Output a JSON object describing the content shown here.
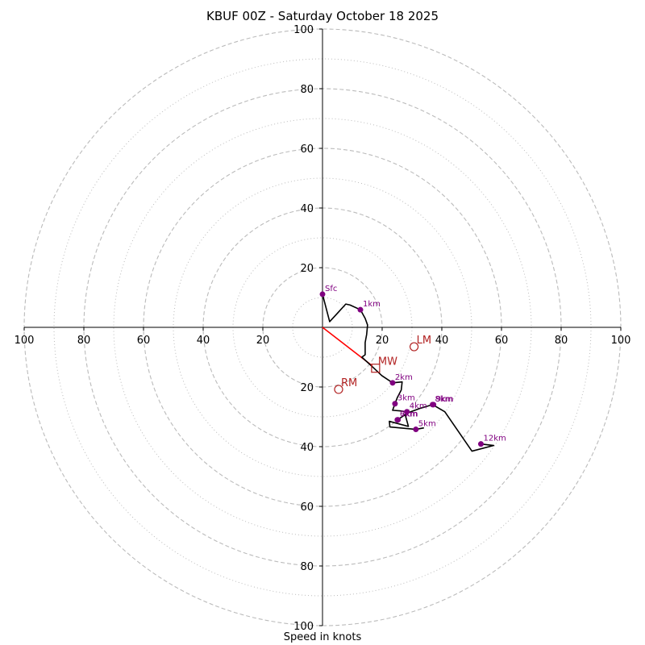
{
  "chart_data": {
    "type": "scatter",
    "subtype": "hodograph",
    "title": "KBUF 00Z - Saturday October 18 2025",
    "xlabel": "Speed in knots",
    "ylabel": "",
    "xlim": [
      -100,
      100
    ],
    "ylim": [
      -100,
      100
    ],
    "rings": {
      "dashed": [
        20,
        40,
        60,
        80,
        100
      ],
      "dotted": [
        10,
        30,
        50,
        70,
        90
      ],
      "color": "#bbbbbb"
    },
    "tick_labels": [
      "100",
      "80",
      "60",
      "40",
      "20"
    ],
    "x_ticks": [
      -100,
      -80,
      -60,
      -40,
      -20,
      20,
      40,
      60,
      80,
      100
    ],
    "y_ticks": [
      100,
      80,
      60,
      40,
      20,
      -20,
      -40,
      -60,
      -80,
      -100
    ],
    "series": [
      {
        "name": "hodograph",
        "color": "#000000",
        "segments": [
          [
            [
              0,
              11.1
            ],
            [
              2.4,
              1.9
            ],
            [
              4.9,
              4.6
            ],
            [
              7.8,
              7.8
            ],
            [
              9.2,
              7.5
            ],
            [
              12.7,
              5.9
            ],
            [
              14.3,
              3.0
            ],
            [
              15.1,
              0.8
            ],
            [
              14.8,
              -2.4
            ],
            [
              14.3,
              -5.1
            ],
            [
              14.3,
              -9.2
            ],
            [
              13.2,
              -10.0
            ],
            [
              16.7,
              -13.2
            ],
            [
              19.9,
              -16.2
            ],
            [
              23.5,
              -18.6
            ],
            [
              26.7,
              -18.3
            ],
            [
              26.4,
              -21.0
            ],
            [
              25.1,
              -23.5
            ],
            [
              24.3,
              -25.6
            ],
            [
              23.5,
              -27.8
            ],
            [
              25.9,
              -28.0
            ],
            [
              28.3,
              -28.3
            ],
            [
              27.8,
              -29.6
            ],
            [
              28.8,
              -33.2
            ],
            [
              22.4,
              -31.5
            ],
            [
              22.6,
              -33.4
            ],
            [
              31.3,
              -34.2
            ],
            [
              34.0,
              -33.7
            ]
          ],
          [
            [
              25.1,
              -31.0
            ],
            [
              28.8,
              -28.6
            ],
            [
              32.6,
              -27.2
            ],
            [
              36.9,
              -25.9
            ],
            [
              41.0,
              -28.3
            ],
            [
              50.1,
              -41.5
            ],
            [
              57.4,
              -39.6
            ],
            [
              53.1,
              -39.1
            ]
          ]
        ]
      }
    ],
    "height_markers": {
      "color": "#800080",
      "points": [
        {
          "label": "Sfc",
          "u": 0,
          "v": 11.1
        },
        {
          "label": "1km",
          "u": 12.7,
          "v": 5.9
        },
        {
          "label": "2km",
          "u": 23.5,
          "v": -18.6
        },
        {
          "label": "3km",
          "u": 24.3,
          "v": -25.6
        },
        {
          "label": "4km",
          "u": 28.3,
          "v": -28.3
        },
        {
          "label": "5km",
          "u": 31.3,
          "v": -34.2
        },
        {
          "label": "6km",
          "u": 25.1,
          "v": -31.0
        },
        {
          "label": "7km",
          "u": 25.3,
          "v": -31.0
        },
        {
          "label": "8km",
          "u": 36.9,
          "v": -25.9
        },
        {
          "label": "9km",
          "u": 37.2,
          "v": -25.9
        },
        {
          "label": "12km",
          "u": 53.1,
          "v": -39.1
        }
      ]
    },
    "storm_motion": {
      "color": "#b22222",
      "mean_wind_line_color": "#ff0000",
      "mean_wind_line": [
        [
          0,
          0
        ],
        [
          16.7,
          -12.9
        ]
      ],
      "points": [
        {
          "label": "LM",
          "u": 30.7,
          "v": -6.5,
          "marker": "circle"
        },
        {
          "label": "MW",
          "u": 17.8,
          "v": -13.7,
          "marker": "square"
        },
        {
          "label": "RM",
          "u": 5.4,
          "v": -20.8,
          "marker": "circle"
        }
      ]
    }
  }
}
